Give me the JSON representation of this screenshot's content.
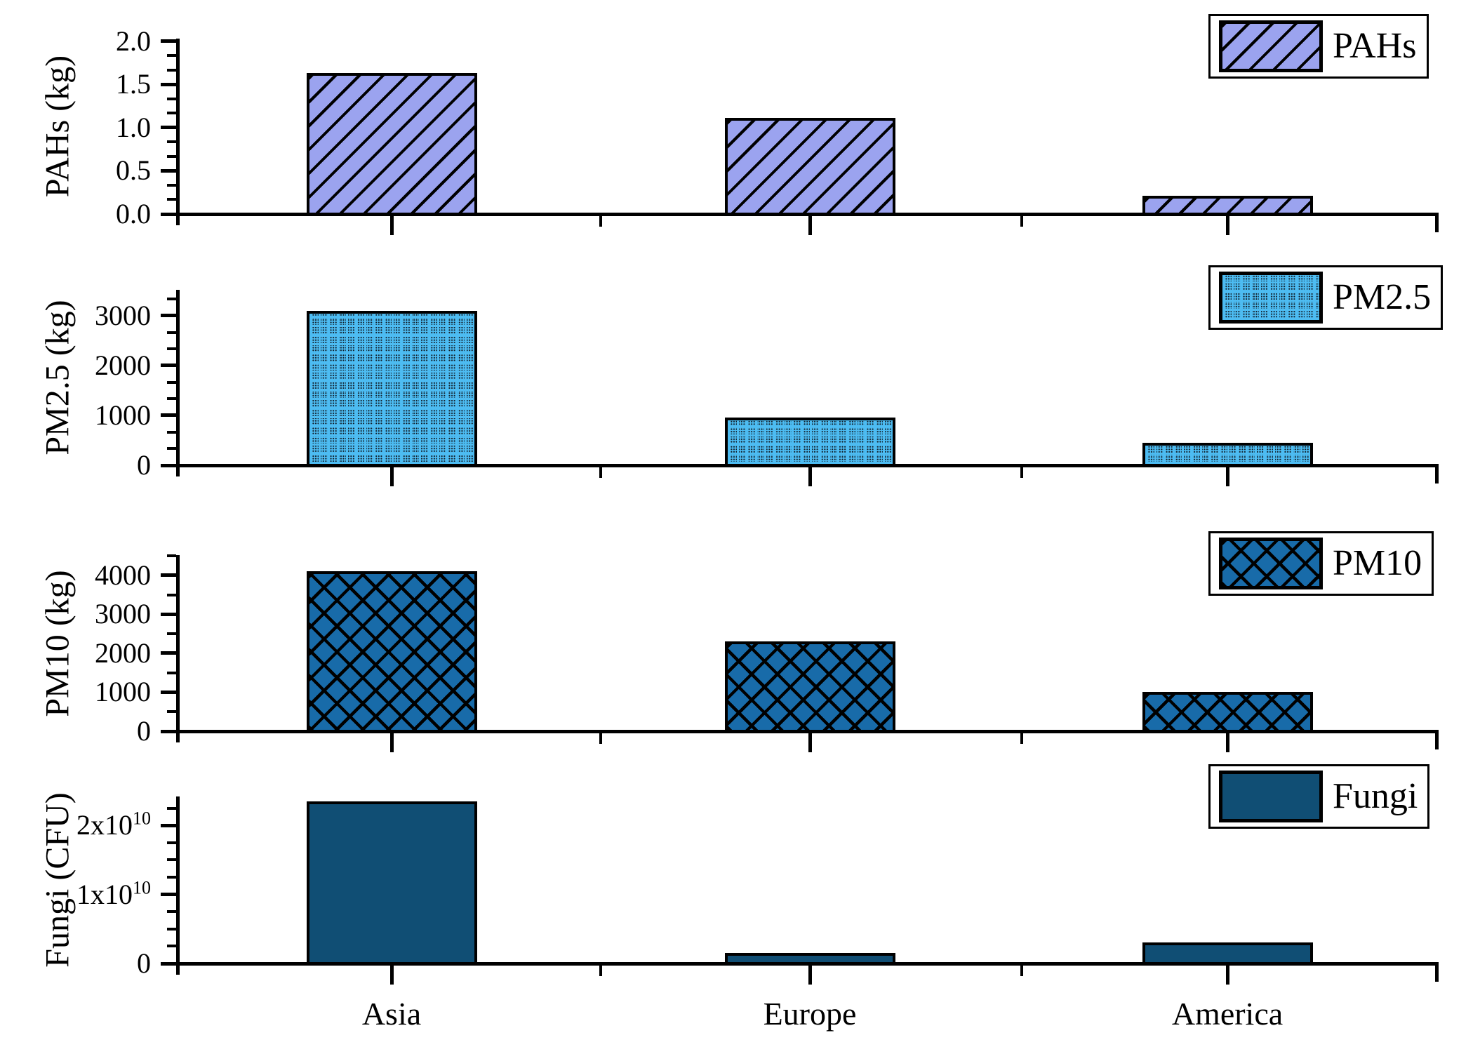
{
  "figure": {
    "xlabel": "",
    "categories": [
      "Asia",
      "Europe",
      "America"
    ],
    "axis_color": "#000000",
    "background": "#ffffff"
  },
  "chart_data": [
    {
      "type": "bar",
      "legend": "PAHs",
      "ylabel": "PAHs (kg)",
      "categories": [
        "Asia",
        "Europe",
        "America"
      ],
      "values": [
        1.63,
        1.11,
        0.21
      ],
      "ylim": [
        0,
        2.03
      ],
      "yticks": [
        {
          "value": 0,
          "label": "0.0"
        },
        {
          "value": 0.5,
          "label": "0.5"
        },
        {
          "value": 1.0,
          "label": "1.0"
        },
        {
          "value": 1.5,
          "label": "1.5"
        },
        {
          "value": 2.0,
          "label": "2.0"
        }
      ],
      "minor_tick_step": 0.16667,
      "fill": "#9BA3EF",
      "edge": "#000000",
      "hatch": "diagonal-hatch",
      "legend_position": "top-right",
      "grid": false,
      "show_xticklabels": false
    },
    {
      "type": "bar",
      "legend": "PM2.5",
      "ylabel": "PM2.5 (kg)",
      "categories": [
        "Asia",
        "Europe",
        "America"
      ],
      "values": [
        3100,
        960,
        450
      ],
      "ylim": [
        0,
        3520
      ],
      "yticks": [
        {
          "value": 0,
          "label": "0"
        },
        {
          "value": 1000,
          "label": "1000"
        },
        {
          "value": 2000,
          "label": "2000"
        },
        {
          "value": 3000,
          "label": "3000"
        }
      ],
      "minor_tick_step": 333.33,
      "fill": "#4DBCF2",
      "edge": "#000000",
      "hatch": "dot-grid",
      "legend_position": "top-right",
      "grid": false,
      "show_xticklabels": false
    },
    {
      "type": "bar",
      "legend": "PM10",
      "ylabel": "PM10 (kg)",
      "categories": [
        "Asia",
        "Europe",
        "America"
      ],
      "values": [
        4100,
        2300,
        1000
      ],
      "ylim": [
        0,
        4520
      ],
      "yticks": [
        {
          "value": 0,
          "label": "0"
        },
        {
          "value": 1000,
          "label": "1000"
        },
        {
          "value": 2000,
          "label": "2000"
        },
        {
          "value": 3000,
          "label": "3000"
        },
        {
          "value": 4000,
          "label": "4000"
        }
      ],
      "minor_tick_step": 500,
      "fill": "#186BA9",
      "edge": "#000000",
      "hatch": "cross-hatch",
      "legend_position": "top-right",
      "grid": false,
      "show_xticklabels": false
    },
    {
      "type": "bar",
      "legend": "Fungi",
      "ylabel": "Fungi (CFU)",
      "categories": [
        "Asia",
        "Europe",
        "America"
      ],
      "values": [
        23500000000,
        1500000000,
        3000000000
      ],
      "ylim": [
        0,
        24200000000
      ],
      "yticks": [
        {
          "value": 0,
          "label": "0"
        },
        {
          "value": 10000000000,
          "label": "1x10^10"
        },
        {
          "value": 20000000000,
          "label": "2x10^10"
        }
      ],
      "minor_tick_step": 2500000000,
      "fill": "#104E74",
      "edge": "#000000",
      "hatch": "solid",
      "legend_position": "top-right",
      "grid": false,
      "show_xticklabels": true
    }
  ]
}
